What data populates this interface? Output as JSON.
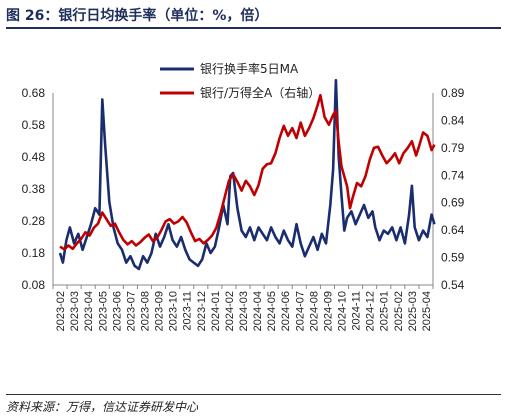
{
  "header": {
    "title": "图 26：银行日均换手率（单位：%，倍）"
  },
  "footer": {
    "source": "资料来源：万得，信达证券研发中心"
  },
  "colors": {
    "series1": "#1a2d6e",
    "series2": "#c00000"
  },
  "chart_data": {
    "type": "line",
    "title": "",
    "legend_position": "top-center",
    "grid": false,
    "x_labels": [
      "2023-02",
      "2023-03",
      "2023-04",
      "2023-05",
      "2023-06",
      "2023-07",
      "2023-08",
      "2023-09",
      "2023-10",
      "2023-11",
      "2023-12",
      "2024-01",
      "2024-02",
      "2024-03",
      "2024-04",
      "2024-05",
      "2024-06",
      "2024-07",
      "2024-08",
      "2024-09",
      "2024-10",
      "2024-11",
      "2024-12",
      "2025-01",
      "2025-02",
      "2025-03",
      "2025-04"
    ],
    "y_left": {
      "ticks": [
        "0.68",
        "0.58",
        "0.48",
        "0.38",
        "0.28",
        "0.18",
        "0.08"
      ],
      "min": 0.08,
      "max": 0.68
    },
    "y_right": {
      "ticks": [
        "0.89",
        "0.84",
        "0.79",
        "0.74",
        "0.69",
        "0.64",
        "0.59",
        "0.54"
      ],
      "min": 0.54,
      "max": 0.89
    },
    "series": [
      {
        "name": "银行换手率5日MA",
        "axis": "left",
        "points": [
          [
            0,
            0.18
          ],
          [
            0.2,
            0.15
          ],
          [
            0.45,
            0.22
          ],
          [
            0.7,
            0.26
          ],
          [
            1.0,
            0.21
          ],
          [
            1.3,
            0.24
          ],
          [
            1.6,
            0.19
          ],
          [
            1.9,
            0.23
          ],
          [
            2.2,
            0.27
          ],
          [
            2.5,
            0.32
          ],
          [
            2.8,
            0.3
          ],
          [
            3.0,
            0.66
          ],
          [
            3.2,
            0.52
          ],
          [
            3.5,
            0.34
          ],
          [
            3.8,
            0.26
          ],
          [
            4.1,
            0.21
          ],
          [
            4.4,
            0.19
          ],
          [
            4.7,
            0.15
          ],
          [
            5.0,
            0.17
          ],
          [
            5.3,
            0.14
          ],
          [
            5.6,
            0.13
          ],
          [
            5.9,
            0.17
          ],
          [
            6.2,
            0.15
          ],
          [
            6.5,
            0.18
          ],
          [
            6.8,
            0.24
          ],
          [
            7.1,
            0.2
          ],
          [
            7.4,
            0.23
          ],
          [
            7.7,
            0.27
          ],
          [
            8.0,
            0.22
          ],
          [
            8.3,
            0.2
          ],
          [
            8.6,
            0.23
          ],
          [
            8.9,
            0.19
          ],
          [
            9.2,
            0.16
          ],
          [
            9.5,
            0.15
          ],
          [
            9.8,
            0.14
          ],
          [
            10.1,
            0.16
          ],
          [
            10.4,
            0.21
          ],
          [
            10.7,
            0.18
          ],
          [
            11.0,
            0.2
          ],
          [
            11.3,
            0.26
          ],
          [
            11.6,
            0.33
          ],
          [
            11.9,
            0.27
          ],
          [
            12.1,
            0.42
          ],
          [
            12.3,
            0.43
          ],
          [
            12.6,
            0.32
          ],
          [
            12.9,
            0.25
          ],
          [
            13.2,
            0.23
          ],
          [
            13.5,
            0.26
          ],
          [
            13.8,
            0.22
          ],
          [
            14.1,
            0.26
          ],
          [
            14.4,
            0.24
          ],
          [
            14.7,
            0.22
          ],
          [
            15.0,
            0.26
          ],
          [
            15.3,
            0.23
          ],
          [
            15.6,
            0.21
          ],
          [
            15.9,
            0.25
          ],
          [
            16.2,
            0.22
          ],
          [
            16.5,
            0.2
          ],
          [
            16.8,
            0.27
          ],
          [
            17.1,
            0.21
          ],
          [
            17.4,
            0.17
          ],
          [
            17.7,
            0.2
          ],
          [
            18.0,
            0.23
          ],
          [
            18.3,
            0.19
          ],
          [
            18.6,
            0.24
          ],
          [
            18.9,
            0.21
          ],
          [
            19.2,
            0.33
          ],
          [
            19.4,
            0.44
          ],
          [
            19.6,
            0.72
          ],
          [
            19.8,
            0.48
          ],
          [
            20.0,
            0.36
          ],
          [
            20.2,
            0.25
          ],
          [
            20.4,
            0.29
          ],
          [
            20.7,
            0.31
          ],
          [
            21.0,
            0.27
          ],
          [
            21.3,
            0.3
          ],
          [
            21.6,
            0.33
          ],
          [
            21.9,
            0.29
          ],
          [
            22.2,
            0.31
          ],
          [
            22.4,
            0.26
          ],
          [
            22.7,
            0.22
          ],
          [
            23.0,
            0.25
          ],
          [
            23.3,
            0.24
          ],
          [
            23.6,
            0.26
          ],
          [
            23.9,
            0.22
          ],
          [
            24.2,
            0.26
          ],
          [
            24.5,
            0.21
          ],
          [
            24.8,
            0.3
          ],
          [
            25.0,
            0.39
          ],
          [
            25.2,
            0.26
          ],
          [
            25.5,
            0.22
          ],
          [
            25.8,
            0.25
          ],
          [
            26.1,
            0.23
          ],
          [
            26.4,
            0.3
          ],
          [
            26.6,
            0.27
          ]
        ]
      },
      {
        "name": "银行/万得全A（右轴）",
        "axis": "right",
        "points": [
          [
            0,
            0.61
          ],
          [
            0.3,
            0.605
          ],
          [
            0.6,
            0.612
          ],
          [
            0.9,
            0.606
          ],
          [
            1.2,
            0.616
          ],
          [
            1.5,
            0.624
          ],
          [
            1.8,
            0.636
          ],
          [
            2.1,
            0.63
          ],
          [
            2.4,
            0.644
          ],
          [
            2.7,
            0.652
          ],
          [
            3.0,
            0.672
          ],
          [
            3.3,
            0.66
          ],
          [
            3.6,
            0.648
          ],
          [
            3.9,
            0.652
          ],
          [
            4.2,
            0.636
          ],
          [
            4.5,
            0.622
          ],
          [
            4.8,
            0.614
          ],
          [
            5.1,
            0.62
          ],
          [
            5.4,
            0.612
          ],
          [
            5.7,
            0.618
          ],
          [
            6.0,
            0.626
          ],
          [
            6.3,
            0.632
          ],
          [
            6.6,
            0.62
          ],
          [
            6.9,
            0.626
          ],
          [
            7.2,
            0.64
          ],
          [
            7.5,
            0.656
          ],
          [
            7.8,
            0.66
          ],
          [
            8.1,
            0.652
          ],
          [
            8.4,
            0.656
          ],
          [
            8.7,
            0.664
          ],
          [
            9.0,
            0.654
          ],
          [
            9.3,
            0.636
          ],
          [
            9.6,
            0.62
          ],
          [
            9.9,
            0.624
          ],
          [
            10.2,
            0.616
          ],
          [
            10.5,
            0.622
          ],
          [
            10.8,
            0.63
          ],
          [
            11.1,
            0.644
          ],
          [
            11.4,
            0.67
          ],
          [
            11.7,
            0.7
          ],
          [
            12.0,
            0.73
          ],
          [
            12.3,
            0.742
          ],
          [
            12.6,
            0.728
          ],
          [
            12.9,
            0.712
          ],
          [
            13.2,
            0.73
          ],
          [
            13.5,
            0.72
          ],
          [
            13.8,
            0.704
          ],
          [
            14.1,
            0.722
          ],
          [
            14.4,
            0.752
          ],
          [
            14.7,
            0.76
          ],
          [
            15.0,
            0.762
          ],
          [
            15.3,
            0.78
          ],
          [
            15.6,
            0.808
          ],
          [
            15.9,
            0.83
          ],
          [
            16.2,
            0.812
          ],
          [
            16.5,
            0.826
          ],
          [
            16.8,
            0.808
          ],
          [
            17.1,
            0.836
          ],
          [
            17.4,
            0.812
          ],
          [
            17.7,
            0.826
          ],
          [
            18.0,
            0.844
          ],
          [
            18.3,
            0.868
          ],
          [
            18.5,
            0.886
          ],
          [
            18.8,
            0.846
          ],
          [
            19.1,
            0.832
          ],
          [
            19.4,
            0.85
          ],
          [
            19.6,
            0.858
          ],
          [
            19.8,
            0.8
          ],
          [
            20.0,
            0.756
          ],
          [
            20.2,
            0.738
          ],
          [
            20.4,
            0.72
          ],
          [
            20.6,
            0.68
          ],
          [
            20.8,
            0.7
          ],
          [
            21.1,
            0.726
          ],
          [
            21.4,
            0.72
          ],
          [
            21.7,
            0.738
          ],
          [
            22.0,
            0.768
          ],
          [
            22.3,
            0.79
          ],
          [
            22.6,
            0.792
          ],
          [
            22.9,
            0.776
          ],
          [
            23.2,
            0.762
          ],
          [
            23.5,
            0.77
          ],
          [
            23.8,
            0.78
          ],
          [
            24.1,
            0.762
          ],
          [
            24.4,
            0.78
          ],
          [
            24.7,
            0.79
          ],
          [
            25.0,
            0.802
          ],
          [
            25.3,
            0.776
          ],
          [
            25.5,
            0.792
          ],
          [
            25.8,
            0.818
          ],
          [
            26.1,
            0.812
          ],
          [
            26.4,
            0.786
          ],
          [
            26.6,
            0.796
          ]
        ]
      }
    ]
  }
}
